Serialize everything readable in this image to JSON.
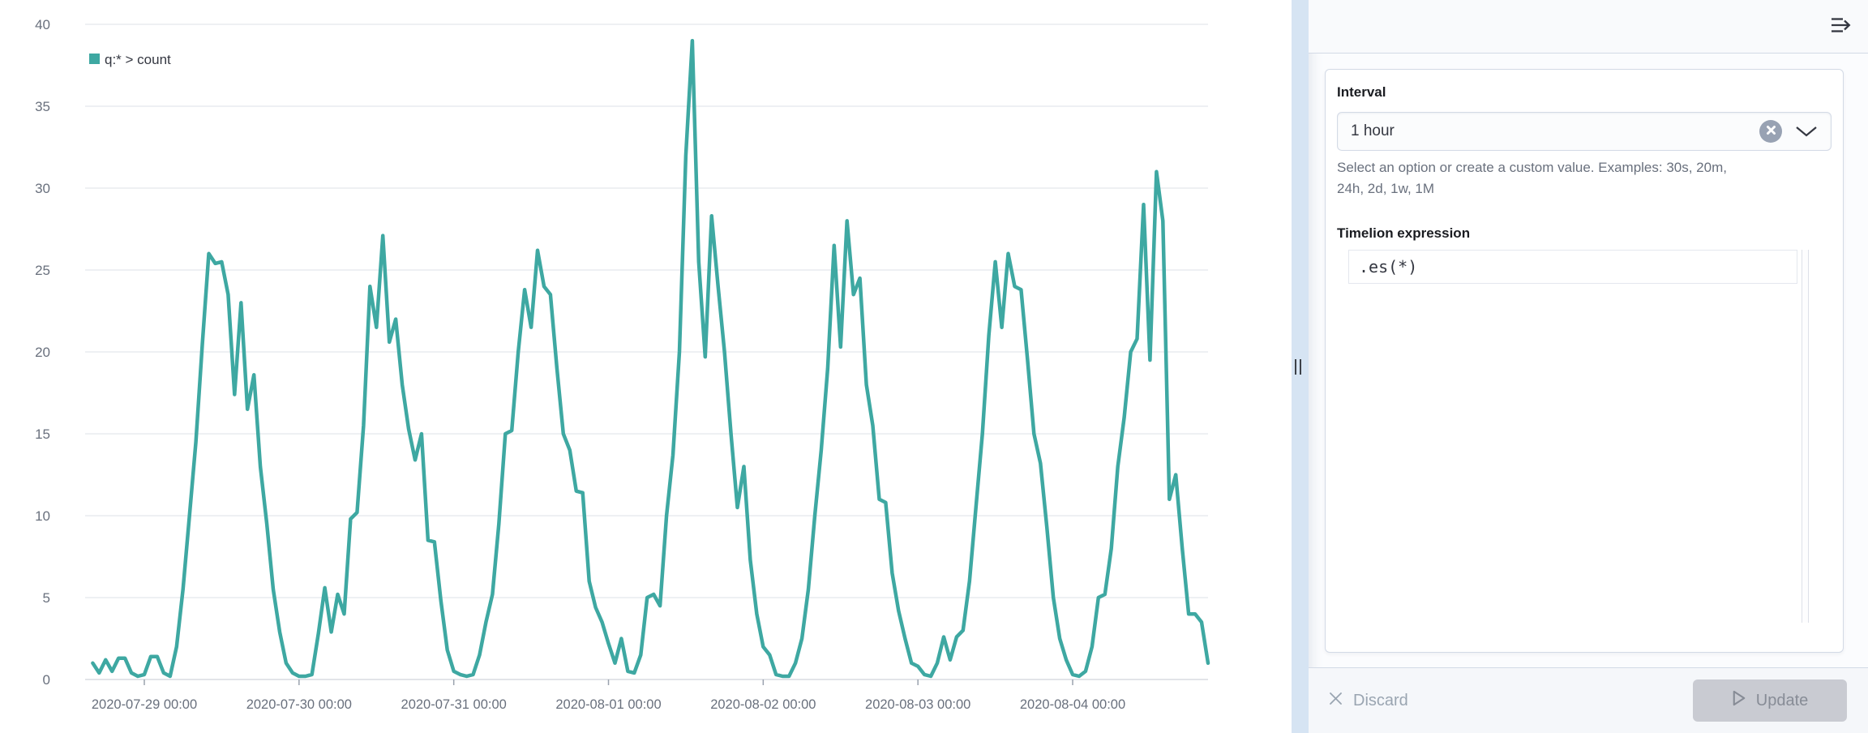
{
  "chart_data": {
    "type": "line",
    "title": "",
    "series": [
      {
        "name": "q:* > count",
        "color": "#3EA8A2"
      }
    ],
    "series_name": "q:* > count",
    "interval_hours": 1,
    "x_start": "2020-07-28 16:00",
    "x_tick_labels": [
      "2020-07-29 00:00",
      "2020-07-30 00:00",
      "2020-07-31 00:00",
      "2020-08-01 00:00",
      "2020-08-02 00:00",
      "2020-08-03 00:00",
      "2020-08-04 00:00"
    ],
    "tick_indices": [
      8,
      32,
      56,
      80,
      104,
      128,
      152
    ],
    "y_ticks": [
      0,
      5,
      10,
      15,
      20,
      25,
      30,
      35,
      40
    ],
    "ylim": [
      0,
      40
    ],
    "grid": true,
    "legend_position": "top-left",
    "values": [
      1.0,
      0.4,
      1.2,
      0.5,
      1.3,
      1.3,
      0.4,
      0.2,
      0.3,
      1.4,
      1.4,
      0.4,
      0.2,
      2,
      5.5,
      10,
      14.5,
      20.5,
      26,
      25.4,
      25.5,
      23.5,
      17.4,
      23,
      16.5,
      18.6,
      13,
      9.5,
      5.5,
      2.9,
      1,
      0.4,
      0.2,
      0.2,
      0.3,
      2.8,
      5.6,
      2.9,
      5.2,
      4,
      9.8,
      10.2,
      15.5,
      24,
      21.5,
      27.1,
      20.6,
      22,
      18,
      15.3,
      13.4,
      15,
      8.5,
      8.4,
      4.8,
      1.8,
      0.5,
      0.3,
      0.2,
      0.3,
      1.5,
      3.5,
      5.2,
      9.5,
      15,
      15.2,
      20,
      23.8,
      21.5,
      26.2,
      24,
      23.5,
      19,
      15,
      14,
      11.5,
      11.4,
      6,
      4.4,
      3.5,
      2.2,
      1,
      2.5,
      0.5,
      0.4,
      1.5,
      5,
      5.2,
      4.5,
      10,
      13.7,
      20,
      32,
      39,
      25.5,
      19.7,
      28.3,
      24,
      20,
      15,
      10.5,
      13,
      7.3,
      4,
      2,
      1.5,
      0.3,
      0.2,
      0.2,
      1,
      2.5,
      5.5,
      10,
      14,
      19,
      26.5,
      20.3,
      28,
      23.5,
      24.5,
      18,
      15.5,
      11,
      10.8,
      6.5,
      4.2,
      2.5,
      1,
      0.8,
      0.3,
      0.2,
      1,
      2.6,
      1.2,
      2.6,
      3,
      6,
      10.5,
      15,
      21,
      25.5,
      21.5,
      26,
      24,
      23.8,
      19.5,
      15,
      13.2,
      9.3,
      5,
      2.5,
      1.2,
      0.3,
      0.2,
      0.5,
      2,
      5,
      5.2,
      8,
      13,
      16,
      20,
      20.8,
      29,
      19.5,
      31,
      28,
      11,
      12.5,
      8,
      4,
      4,
      3.5,
      1
    ]
  },
  "colors": {
    "series": "#3EA8A2",
    "grid": "#E9EBEF",
    "axis_line": "#D8DBE1",
    "axis_text": "#69707D",
    "gutter": "#D6E4F3"
  },
  "icons": {
    "collapse": "menu-right-icon",
    "clear": "cross-in-circle-icon",
    "caret": "chevron-down-icon",
    "discard": "cross-icon",
    "update": "play-icon",
    "resize": "grab-handle-icon"
  },
  "panel": {
    "interval": {
      "label": "Interval",
      "value": "1 hour",
      "help_line1": "Select an option or create a custom value. Examples: 30s, 20m,",
      "help_line2": "24h, 2d, 1w, 1M"
    },
    "expression": {
      "label": "Timelion expression",
      "value": ".es(*)"
    },
    "footer": {
      "discard_label": "Discard",
      "update_label": "Update"
    }
  }
}
